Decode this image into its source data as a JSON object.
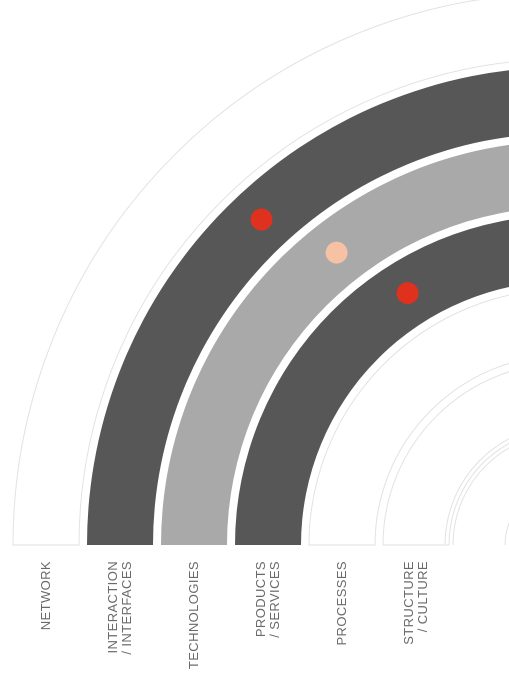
{
  "diagram": {
    "colors": {
      "background": "#ffffff",
      "outline_band": "#e2e2e2",
      "dark_band": "#575757",
      "light_band": "#a9a9a9",
      "marker_red": "#e0301e",
      "marker_peach": "#f7c1a3",
      "label_text": "#6a6a6a"
    },
    "bands": [
      {
        "id": "network",
        "fill": "outline",
        "lines": [
          "NETWORK"
        ]
      },
      {
        "id": "interaction",
        "fill": "dark",
        "lines": [
          "INTERACTION",
          "/ INTERFACES"
        ]
      },
      {
        "id": "technologies",
        "fill": "light",
        "lines": [
          "TECHNOLOGIES"
        ]
      },
      {
        "id": "products",
        "fill": "dark",
        "lines": [
          "PRODUCTS",
          "/ SERVICES"
        ]
      },
      {
        "id": "processes",
        "fill": "outline",
        "lines": [
          "PROCESSES"
        ]
      },
      {
        "id": "structure",
        "fill": "outline",
        "lines": [
          "STRUCTURE",
          "/ CULTURE"
        ]
      }
    ],
    "markers": [
      {
        "band": "interaction",
        "color": "red"
      },
      {
        "band": "technologies",
        "color": "peach"
      },
      {
        "band": "products",
        "color": "red"
      }
    ]
  }
}
